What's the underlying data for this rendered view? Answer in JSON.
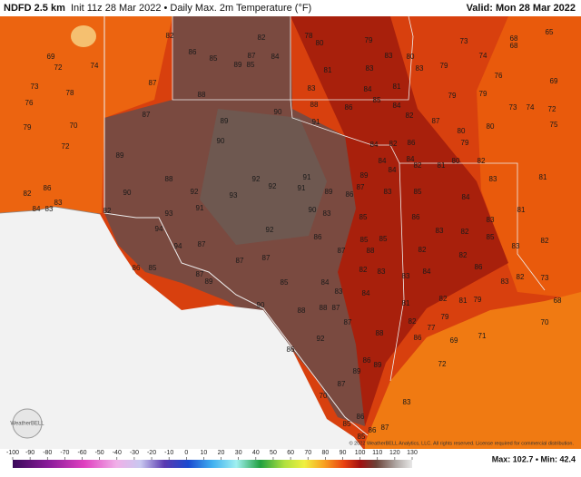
{
  "header": {
    "title": "NDFD 2.5 km",
    "subtitle": "Init 11z 28 Mar 2022 • Daily Max. 2m Temperature (°F)",
    "valid": "Valid: Mon 28 Mar 2022"
  },
  "map": {
    "labels": [
      82,
      82,
      78,
      80,
      79,
      73,
      68,
      65,
      68,
      69,
      72,
      74,
      86,
      85,
      89,
      87,
      85,
      84,
      81,
      83,
      83,
      80,
      83,
      79,
      74,
      76,
      69,
      73,
      76,
      78,
      87,
      88,
      83,
      84,
      81,
      79,
      79,
      73,
      74,
      72,
      79,
      70,
      87,
      89,
      90,
      88,
      86,
      85,
      84,
      82,
      87,
      80,
      79,
      80,
      75,
      90,
      84,
      82,
      86,
      91,
      72,
      89,
      88,
      92,
      91,
      89,
      84,
      84,
      84,
      82,
      81,
      80,
      82,
      83,
      81,
      82,
      86,
      83,
      90,
      92,
      93,
      92,
      91,
      89,
      86,
      87,
      83,
      85,
      84,
      81,
      84,
      83,
      82,
      93,
      91,
      90,
      83,
      85,
      86,
      83,
      94,
      92,
      86,
      85,
      85,
      83,
      82,
      85,
      83,
      82,
      94,
      87,
      87,
      87,
      87,
      88,
      82,
      82,
      86,
      86,
      85,
      87,
      89,
      85,
      84,
      82,
      83,
      83,
      84,
      83,
      82,
      81,
      79,
      73,
      90,
      88,
      88,
      87,
      83,
      84,
      81,
      82,
      68,
      87,
      82,
      79,
      77,
      70,
      92,
      88,
      86,
      71,
      86,
      69,
      72,
      86,
      89,
      89,
      87,
      83,
      70,
      86,
      86,
      87,
      85,
      85,
      84
    ]
  },
  "logo": "WeatherBELL",
  "footer": {
    "copyright": "© 2022 WeatherBELL Analytics, LLC. All rights reserved. License required for commercial distribution.",
    "stats": "Max: 102.7 • Min: 42.4"
  },
  "colorbar": {
    "ticks": [
      -100,
      -90,
      -80,
      -70,
      -60,
      -50,
      -40,
      -30,
      -20,
      -10,
      0,
      10,
      20,
      30,
      40,
      50,
      60,
      70,
      80,
      90,
      100,
      110,
      120,
      130
    ]
  }
}
